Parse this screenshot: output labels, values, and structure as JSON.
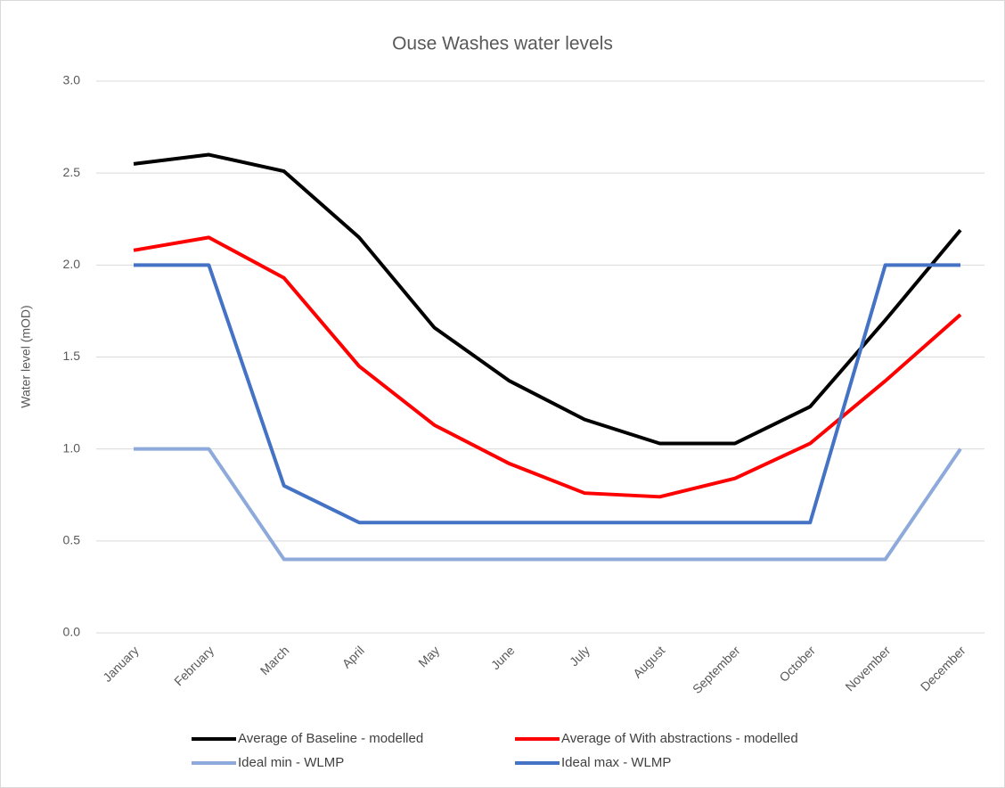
{
  "chart_data": {
    "type": "line",
    "title": "Ouse Washes water levels",
    "ylabel": "Water level (mOD)",
    "categories": [
      "January",
      "February",
      "March",
      "April",
      "May",
      "June",
      "July",
      "August",
      "September",
      "October",
      "November",
      "December"
    ],
    "series": [
      {
        "name": "Average of Baseline - modelled",
        "color": "#000000",
        "values": [
          2.55,
          2.6,
          2.51,
          2.15,
          1.66,
          1.37,
          1.16,
          1.03,
          1.03,
          1.23,
          1.7,
          2.19
        ]
      },
      {
        "name": "Average of With abstractions - modelled",
        "color": "#ff0000",
        "values": [
          2.08,
          2.15,
          1.93,
          1.45,
          1.13,
          0.92,
          0.76,
          0.74,
          0.84,
          1.03,
          1.37,
          1.73
        ]
      },
      {
        "name": "Ideal min - WLMP",
        "color": "#8eaadb",
        "values": [
          1.0,
          1.0,
          0.4,
          0.4,
          0.4,
          0.4,
          0.4,
          0.4,
          0.4,
          0.4,
          0.4,
          1.0
        ]
      },
      {
        "name": "Ideal max - WLMP",
        "color": "#4472c4",
        "values": [
          2.0,
          2.0,
          0.8,
          0.6,
          0.6,
          0.6,
          0.6,
          0.6,
          0.6,
          0.6,
          2.0,
          2.0
        ]
      }
    ],
    "ylim": [
      0,
      3
    ],
    "yticks": [
      {
        "value": 0,
        "label": "0.0"
      },
      0.5,
      {
        "value": 1,
        "label": "1.0"
      },
      1.5,
      {
        "value": 2,
        "label": "2.0"
      },
      2.5,
      {
        "value": 3,
        "label": "3.0"
      }
    ],
    "grid": true,
    "legend": "bottom"
  }
}
